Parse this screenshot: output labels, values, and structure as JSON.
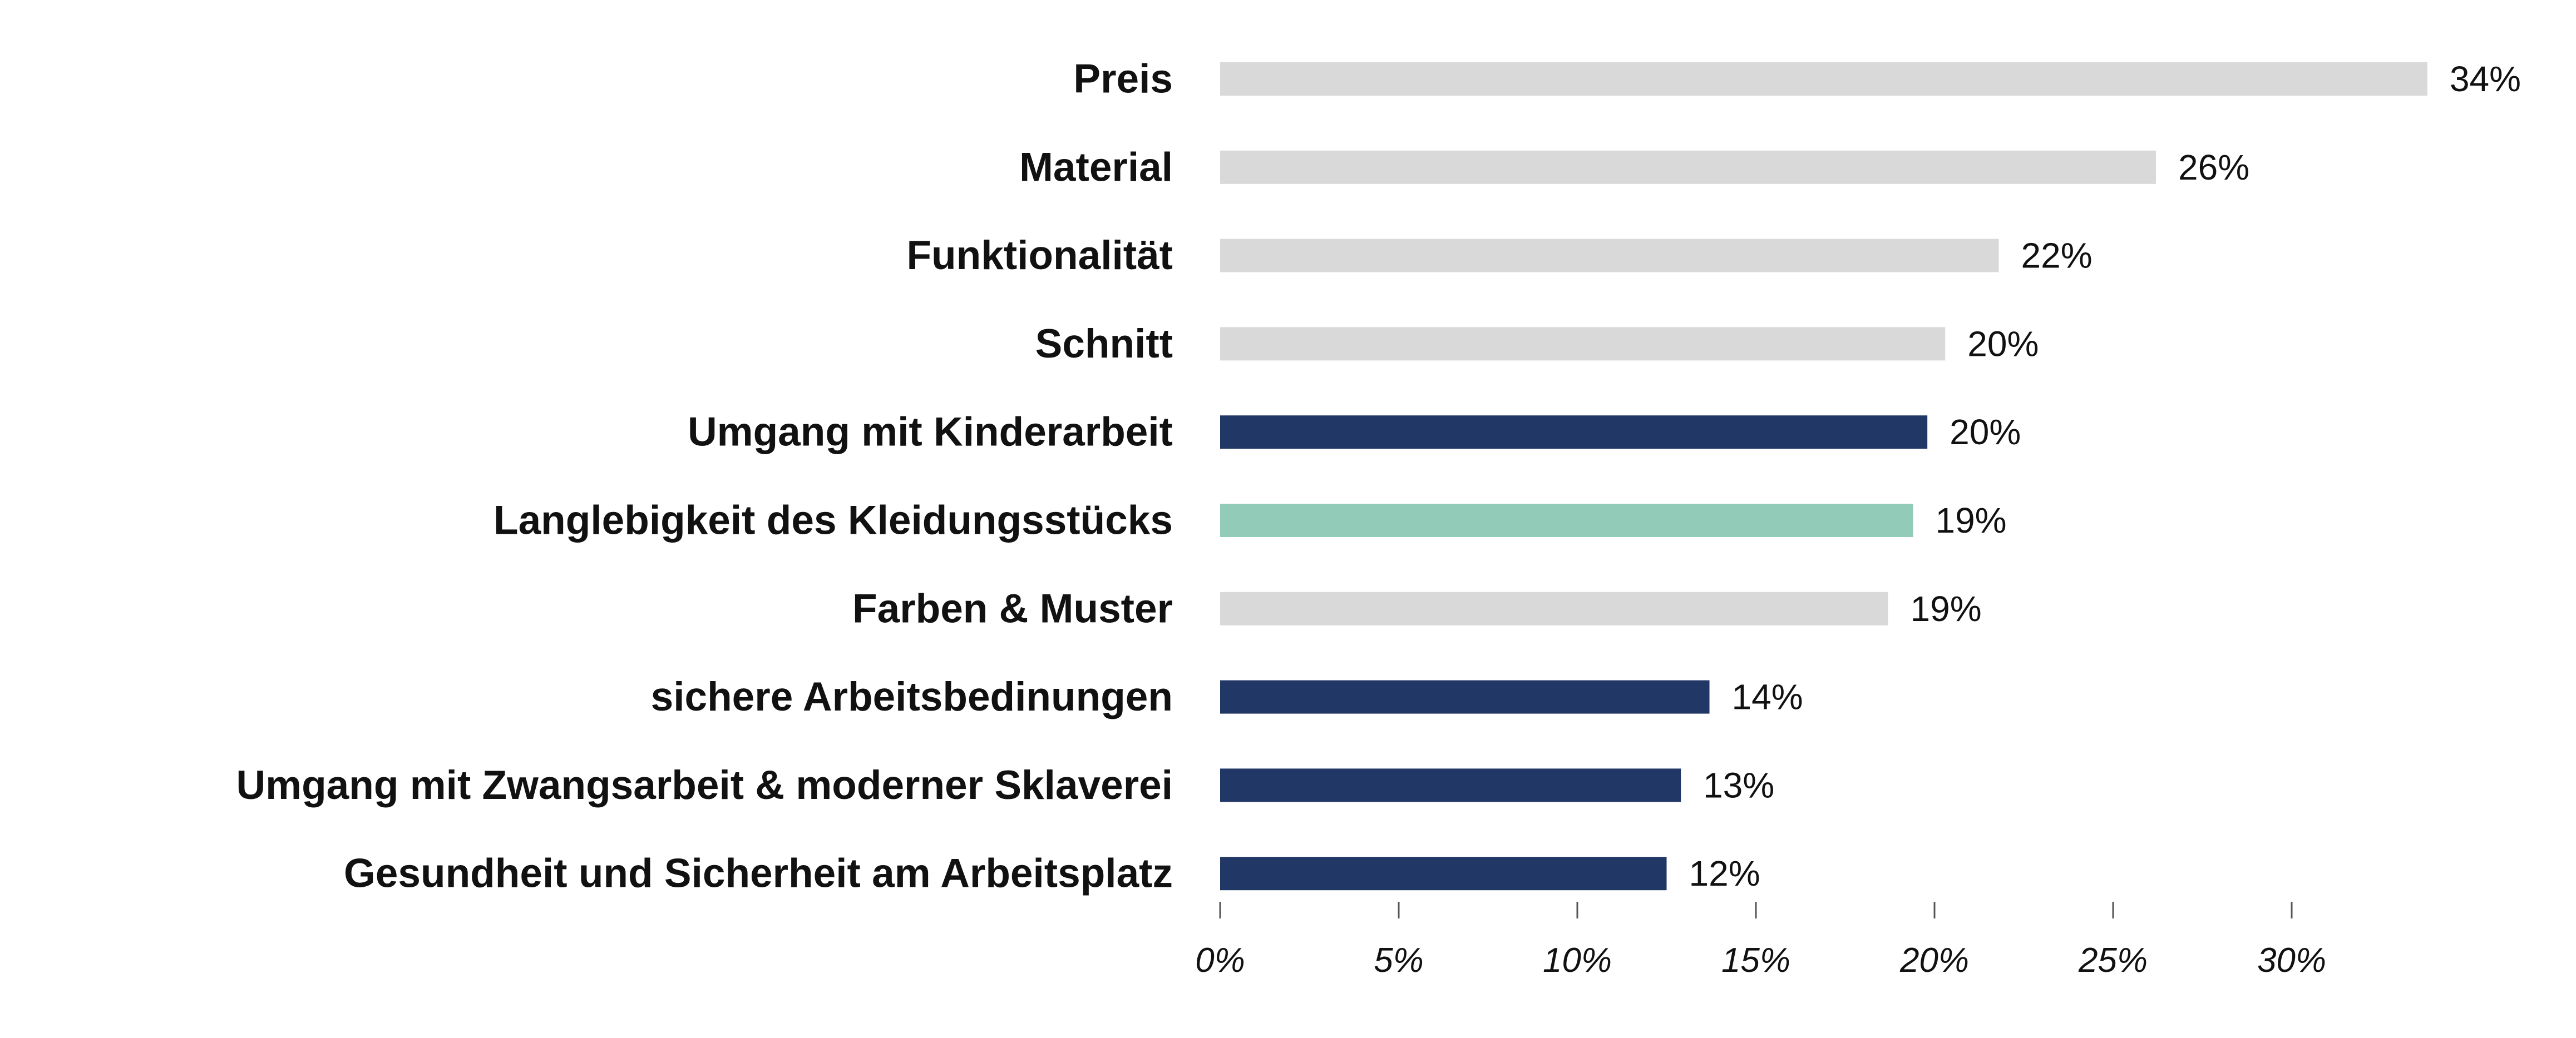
{
  "chart_data": {
    "type": "bar",
    "orientation": "horizontal",
    "title": "",
    "xlabel": "",
    "ylabel": "",
    "xlim": [
      0,
      34
    ],
    "grid": false,
    "categories": [
      "Preis",
      "Material",
      "Funktionalität",
      "Schnitt",
      "Umgang mit Kinderarbeit",
      "Langlebigkeit des Kleidungsstücks",
      "Farben & Muster",
      "sichere Arbeitsbedinungen",
      "Umgang mit Zwangsarbeit & moderner Sklaverei",
      "Gesundheit und Sicherheit am Arbeitsplatz"
    ],
    "values": [
      33.8,
      26.2,
      21.8,
      20.3,
      19.8,
      19.4,
      18.7,
      13.7,
      12.9,
      12.5
    ],
    "value_labels": [
      "34%",
      "26%",
      "22%",
      "20%",
      "20%",
      "19%",
      "19%",
      "14%",
      "13%",
      "12%"
    ],
    "groups": [
      "general",
      "general",
      "general",
      "general",
      "social",
      "durability",
      "general",
      "social",
      "social",
      "social"
    ],
    "group_colors": {
      "general": "#d9d9d9",
      "social": "#213765",
      "durability": "#92cbb7"
    },
    "x_ticks": [
      0,
      5,
      10,
      15,
      20,
      25,
      30
    ],
    "x_tick_labels": [
      "0%",
      "5%",
      "10%",
      "15%",
      "20%",
      "25%",
      "30%"
    ]
  }
}
